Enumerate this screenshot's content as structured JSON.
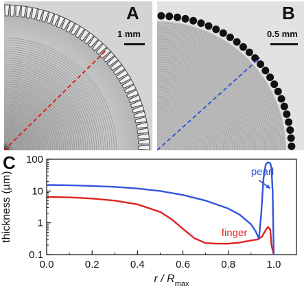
{
  "panels": {
    "a": {
      "label": "A",
      "scale": "1 mm"
    },
    "b": {
      "label": "B",
      "scale": "0.5 mm"
    },
    "c": {
      "label": "C"
    }
  },
  "chart_data": {
    "type": "line",
    "ylabel": "thickness (µm)",
    "xlabel_main": "r / R",
    "xlabel_sub": "max",
    "xlim": [
      0,
      1.1
    ],
    "ylim": [
      0.1,
      100
    ],
    "yscale": "log",
    "x_ticks": [
      "0.0",
      "0.2",
      "0.4",
      "0.6",
      "0.8",
      "1.0"
    ],
    "y_ticks": [
      "0.1",
      "1",
      "10",
      "100"
    ],
    "series": [
      {
        "name": "pearl",
        "color": "#3355dd",
        "x": [
          0,
          0.1,
          0.2,
          0.3,
          0.4,
          0.5,
          0.6,
          0.7,
          0.8,
          0.85,
          0.9,
          0.92,
          0.935,
          0.945,
          0.955,
          0.965,
          0.975,
          0.985,
          0.99,
          0.995,
          1.0
        ],
        "y": [
          15.5,
          15.2,
          14.5,
          13.5,
          12.0,
          10.0,
          7.5,
          5.0,
          2.8,
          1.8,
          0.9,
          0.55,
          0.32,
          2.0,
          25,
          70,
          80,
          75,
          50,
          10,
          0.1
        ]
      },
      {
        "name": "finger",
        "color": "#dd2222",
        "x": [
          0,
          0.1,
          0.2,
          0.3,
          0.4,
          0.5,
          0.55,
          0.6,
          0.65,
          0.7,
          0.75,
          0.8,
          0.85,
          0.9,
          0.93,
          0.95,
          0.965,
          0.975,
          0.985,
          0.99,
          1.0
        ],
        "y": [
          6.5,
          6.3,
          5.8,
          5.0,
          3.8,
          2.2,
          1.3,
          0.65,
          0.33,
          0.23,
          0.22,
          0.22,
          0.24,
          0.28,
          0.3,
          0.38,
          0.6,
          0.75,
          0.6,
          0.2,
          0.1
        ]
      }
    ]
  }
}
